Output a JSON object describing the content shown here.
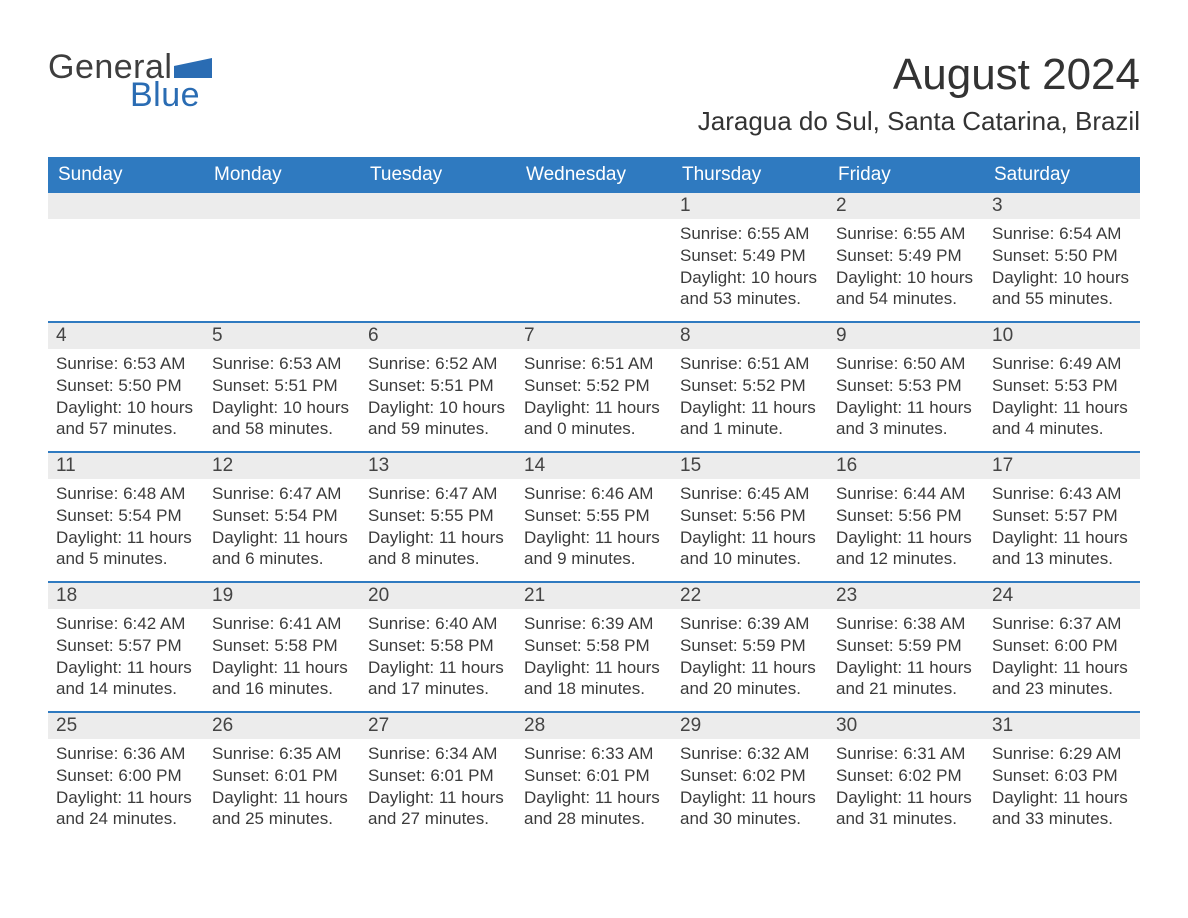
{
  "brand": {
    "part1": "General",
    "part2": "Blue",
    "color_dark": "#3e3e3e",
    "color_blue": "#2a6cb3",
    "icon_color": "#2a6cb3"
  },
  "title": "August 2024",
  "location": "Jaragua do Sul, Santa Catarina, Brazil",
  "colors": {
    "header_bg": "#2f7ac0",
    "header_text": "#ffffff",
    "strip_bg": "#ececec",
    "text": "#3b3b3b",
    "rule": "#2f7ac0",
    "background": "#ffffff"
  },
  "day_names": [
    "Sunday",
    "Monday",
    "Tuesday",
    "Wednesday",
    "Thursday",
    "Friday",
    "Saturday"
  ],
  "weeks": [
    [
      null,
      null,
      null,
      null,
      {
        "n": "1",
        "sunrise": "Sunrise: 6:55 AM",
        "sunset": "Sunset: 5:49 PM",
        "dl1": "Daylight: 10 hours",
        "dl2": "and 53 minutes."
      },
      {
        "n": "2",
        "sunrise": "Sunrise: 6:55 AM",
        "sunset": "Sunset: 5:49 PM",
        "dl1": "Daylight: 10 hours",
        "dl2": "and 54 minutes."
      },
      {
        "n": "3",
        "sunrise": "Sunrise: 6:54 AM",
        "sunset": "Sunset: 5:50 PM",
        "dl1": "Daylight: 10 hours",
        "dl2": "and 55 minutes."
      }
    ],
    [
      {
        "n": "4",
        "sunrise": "Sunrise: 6:53 AM",
        "sunset": "Sunset: 5:50 PM",
        "dl1": "Daylight: 10 hours",
        "dl2": "and 57 minutes."
      },
      {
        "n": "5",
        "sunrise": "Sunrise: 6:53 AM",
        "sunset": "Sunset: 5:51 PM",
        "dl1": "Daylight: 10 hours",
        "dl2": "and 58 minutes."
      },
      {
        "n": "6",
        "sunrise": "Sunrise: 6:52 AM",
        "sunset": "Sunset: 5:51 PM",
        "dl1": "Daylight: 10 hours",
        "dl2": "and 59 minutes."
      },
      {
        "n": "7",
        "sunrise": "Sunrise: 6:51 AM",
        "sunset": "Sunset: 5:52 PM",
        "dl1": "Daylight: 11 hours",
        "dl2": "and 0 minutes."
      },
      {
        "n": "8",
        "sunrise": "Sunrise: 6:51 AM",
        "sunset": "Sunset: 5:52 PM",
        "dl1": "Daylight: 11 hours",
        "dl2": "and 1 minute."
      },
      {
        "n": "9",
        "sunrise": "Sunrise: 6:50 AM",
        "sunset": "Sunset: 5:53 PM",
        "dl1": "Daylight: 11 hours",
        "dl2": "and 3 minutes."
      },
      {
        "n": "10",
        "sunrise": "Sunrise: 6:49 AM",
        "sunset": "Sunset: 5:53 PM",
        "dl1": "Daylight: 11 hours",
        "dl2": "and 4 minutes."
      }
    ],
    [
      {
        "n": "11",
        "sunrise": "Sunrise: 6:48 AM",
        "sunset": "Sunset: 5:54 PM",
        "dl1": "Daylight: 11 hours",
        "dl2": "and 5 minutes."
      },
      {
        "n": "12",
        "sunrise": "Sunrise: 6:47 AM",
        "sunset": "Sunset: 5:54 PM",
        "dl1": "Daylight: 11 hours",
        "dl2": "and 6 minutes."
      },
      {
        "n": "13",
        "sunrise": "Sunrise: 6:47 AM",
        "sunset": "Sunset: 5:55 PM",
        "dl1": "Daylight: 11 hours",
        "dl2": "and 8 minutes."
      },
      {
        "n": "14",
        "sunrise": "Sunrise: 6:46 AM",
        "sunset": "Sunset: 5:55 PM",
        "dl1": "Daylight: 11 hours",
        "dl2": "and 9 minutes."
      },
      {
        "n": "15",
        "sunrise": "Sunrise: 6:45 AM",
        "sunset": "Sunset: 5:56 PM",
        "dl1": "Daylight: 11 hours",
        "dl2": "and 10 minutes."
      },
      {
        "n": "16",
        "sunrise": "Sunrise: 6:44 AM",
        "sunset": "Sunset: 5:56 PM",
        "dl1": "Daylight: 11 hours",
        "dl2": "and 12 minutes."
      },
      {
        "n": "17",
        "sunrise": "Sunrise: 6:43 AM",
        "sunset": "Sunset: 5:57 PM",
        "dl1": "Daylight: 11 hours",
        "dl2": "and 13 minutes."
      }
    ],
    [
      {
        "n": "18",
        "sunrise": "Sunrise: 6:42 AM",
        "sunset": "Sunset: 5:57 PM",
        "dl1": "Daylight: 11 hours",
        "dl2": "and 14 minutes."
      },
      {
        "n": "19",
        "sunrise": "Sunrise: 6:41 AM",
        "sunset": "Sunset: 5:58 PM",
        "dl1": "Daylight: 11 hours",
        "dl2": "and 16 minutes."
      },
      {
        "n": "20",
        "sunrise": "Sunrise: 6:40 AM",
        "sunset": "Sunset: 5:58 PM",
        "dl1": "Daylight: 11 hours",
        "dl2": "and 17 minutes."
      },
      {
        "n": "21",
        "sunrise": "Sunrise: 6:39 AM",
        "sunset": "Sunset: 5:58 PM",
        "dl1": "Daylight: 11 hours",
        "dl2": "and 18 minutes."
      },
      {
        "n": "22",
        "sunrise": "Sunrise: 6:39 AM",
        "sunset": "Sunset: 5:59 PM",
        "dl1": "Daylight: 11 hours",
        "dl2": "and 20 minutes."
      },
      {
        "n": "23",
        "sunrise": "Sunrise: 6:38 AM",
        "sunset": "Sunset: 5:59 PM",
        "dl1": "Daylight: 11 hours",
        "dl2": "and 21 minutes."
      },
      {
        "n": "24",
        "sunrise": "Sunrise: 6:37 AM",
        "sunset": "Sunset: 6:00 PM",
        "dl1": "Daylight: 11 hours",
        "dl2": "and 23 minutes."
      }
    ],
    [
      {
        "n": "25",
        "sunrise": "Sunrise: 6:36 AM",
        "sunset": "Sunset: 6:00 PM",
        "dl1": "Daylight: 11 hours",
        "dl2": "and 24 minutes."
      },
      {
        "n": "26",
        "sunrise": "Sunrise: 6:35 AM",
        "sunset": "Sunset: 6:01 PM",
        "dl1": "Daylight: 11 hours",
        "dl2": "and 25 minutes."
      },
      {
        "n": "27",
        "sunrise": "Sunrise: 6:34 AM",
        "sunset": "Sunset: 6:01 PM",
        "dl1": "Daylight: 11 hours",
        "dl2": "and 27 minutes."
      },
      {
        "n": "28",
        "sunrise": "Sunrise: 6:33 AM",
        "sunset": "Sunset: 6:01 PM",
        "dl1": "Daylight: 11 hours",
        "dl2": "and 28 minutes."
      },
      {
        "n": "29",
        "sunrise": "Sunrise: 6:32 AM",
        "sunset": "Sunset: 6:02 PM",
        "dl1": "Daylight: 11 hours",
        "dl2": "and 30 minutes."
      },
      {
        "n": "30",
        "sunrise": "Sunrise: 6:31 AM",
        "sunset": "Sunset: 6:02 PM",
        "dl1": "Daylight: 11 hours",
        "dl2": "and 31 minutes."
      },
      {
        "n": "31",
        "sunrise": "Sunrise: 6:29 AM",
        "sunset": "Sunset: 6:03 PM",
        "dl1": "Daylight: 11 hours",
        "dl2": "and 33 minutes."
      }
    ]
  ]
}
